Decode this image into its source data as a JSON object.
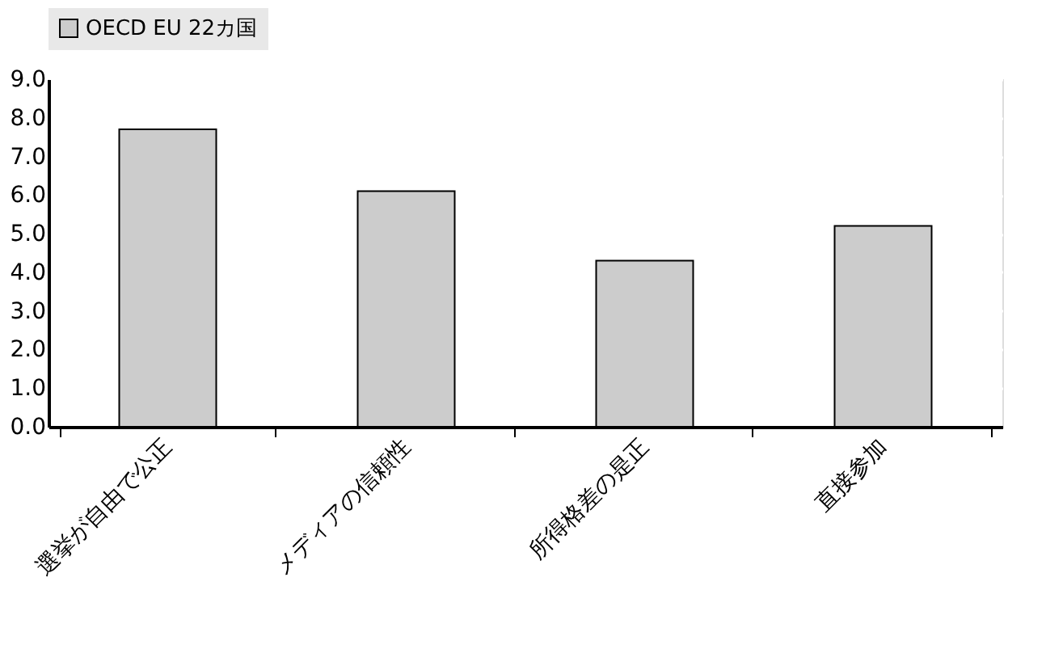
{
  "chart_data": {
    "type": "bar",
    "categories": [
      "選挙が自由で公正",
      "メディアの信頼性",
      "所得格差の是正",
      "直接参加"
    ],
    "series": [
      {
        "name": "OECD EU 22カ国",
        "color": "#cccccc",
        "values": [
          7.7,
          6.1,
          4.3,
          5.2
        ]
      }
    ],
    "ylim": [
      0,
      9
    ],
    "yticks": [
      {
        "value": 0,
        "label": "0.0"
      },
      {
        "value": 1,
        "label": "1.0"
      },
      {
        "value": 2,
        "label": "2.0"
      },
      {
        "value": 3,
        "label": "3.0"
      },
      {
        "value": 4,
        "label": "4.0"
      },
      {
        "value": 5,
        "label": "5.0"
      },
      {
        "value": 6,
        "label": "6.0"
      },
      {
        "value": 7,
        "label": "7.0"
      },
      {
        "value": 8,
        "label": "8.0"
      },
      {
        "value": 9,
        "label": "9.0"
      }
    ],
    "grid": "y",
    "legend": "top"
  }
}
